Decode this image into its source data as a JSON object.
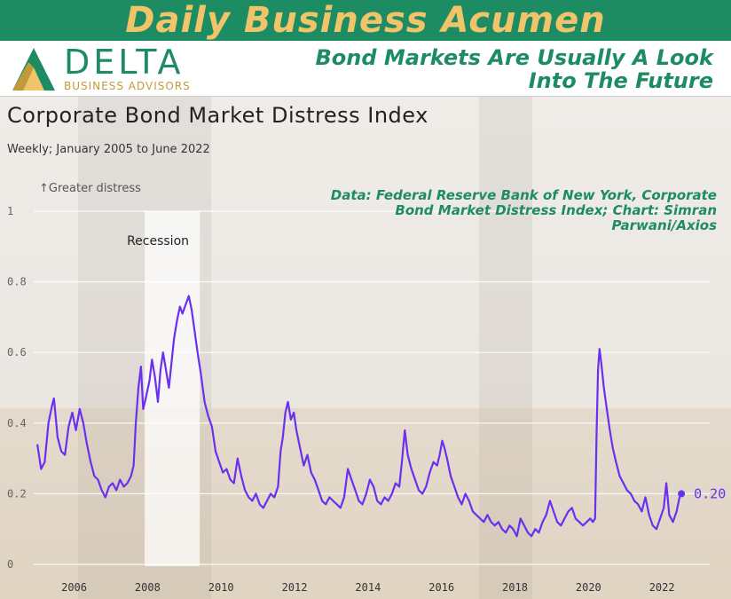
{
  "banner": {
    "title": "Daily Business Acumen"
  },
  "brand": {
    "logo_word": "DELTA",
    "logo_sub": "BUSINESS ADVISORS"
  },
  "tagline": "Bond Markets Are Usually A Look Into The Future",
  "source": "Data: Federal Reserve Bank of New York, Corporate Bond Market Distress Index; Chart: Simran Parwani/Axios",
  "colors": {
    "banner": "#1e8c63",
    "title_gold": "#f2c46a",
    "line": "#6b2ff0",
    "brand_green": "#1e8c63"
  },
  "chart_data": {
    "type": "line",
    "title": "Corporate Bond Market Distress Index",
    "subtitle": "Weekly; January 2005 to June 2022",
    "ylabel": "↑Greater distress",
    "ylim": [
      0,
      1
    ],
    "xlim": [
      2004.9,
      2023.3
    ],
    "y_ticks": [
      0,
      0.2,
      0.4,
      0.6,
      0.8,
      1
    ],
    "y_tick_labels": [
      "0",
      "0.2",
      "0.4",
      "0.6",
      "0.8",
      "1"
    ],
    "x_ticks": [
      2006,
      2008,
      2010,
      2012,
      2014,
      2016,
      2018,
      2020,
      2022
    ],
    "x_tick_labels": [
      "2006",
      "2008",
      "2010",
      "2012",
      "2014",
      "2016",
      "2018",
      "2020",
      "2022"
    ],
    "grid": true,
    "recession": {
      "label": "Recession",
      "start": 2007.92,
      "end": 2009.42
    },
    "end_label": "0.20",
    "series": [
      {
        "values": [
          [
            2005.0,
            0.34
          ],
          [
            2005.1,
            0.27
          ],
          [
            2005.2,
            0.29
          ],
          [
            2005.3,
            0.4
          ],
          [
            2005.4,
            0.45
          ],
          [
            2005.45,
            0.47
          ],
          [
            2005.55,
            0.36
          ],
          [
            2005.65,
            0.32
          ],
          [
            2005.75,
            0.31
          ],
          [
            2005.85,
            0.39
          ],
          [
            2005.95,
            0.43
          ],
          [
            2006.05,
            0.38
          ],
          [
            2006.15,
            0.44
          ],
          [
            2006.25,
            0.4
          ],
          [
            2006.35,
            0.34
          ],
          [
            2006.45,
            0.29
          ],
          [
            2006.55,
            0.25
          ],
          [
            2006.65,
            0.24
          ],
          [
            2006.75,
            0.21
          ],
          [
            2006.85,
            0.19
          ],
          [
            2006.95,
            0.22
          ],
          [
            2007.05,
            0.23
          ],
          [
            2007.15,
            0.21
          ],
          [
            2007.25,
            0.24
          ],
          [
            2007.35,
            0.22
          ],
          [
            2007.45,
            0.23
          ],
          [
            2007.55,
            0.25
          ],
          [
            2007.62,
            0.28
          ],
          [
            2007.68,
            0.4
          ],
          [
            2007.75,
            0.5
          ],
          [
            2007.82,
            0.56
          ],
          [
            2007.88,
            0.44
          ],
          [
            2007.95,
            0.47
          ],
          [
            2008.05,
            0.52
          ],
          [
            2008.12,
            0.58
          ],
          [
            2008.2,
            0.53
          ],
          [
            2008.28,
            0.46
          ],
          [
            2008.35,
            0.55
          ],
          [
            2008.42,
            0.6
          ],
          [
            2008.5,
            0.55
          ],
          [
            2008.58,
            0.5
          ],
          [
            2008.65,
            0.57
          ],
          [
            2008.72,
            0.64
          ],
          [
            2008.8,
            0.69
          ],
          [
            2008.88,
            0.73
          ],
          [
            2008.95,
            0.71
          ],
          [
            2009.05,
            0.74
          ],
          [
            2009.12,
            0.76
          ],
          [
            2009.2,
            0.72
          ],
          [
            2009.28,
            0.66
          ],
          [
            2009.36,
            0.6
          ],
          [
            2009.45,
            0.54
          ],
          [
            2009.55,
            0.46
          ],
          [
            2009.65,
            0.42
          ],
          [
            2009.75,
            0.39
          ],
          [
            2009.85,
            0.32
          ],
          [
            2009.95,
            0.29
          ],
          [
            2010.05,
            0.26
          ],
          [
            2010.15,
            0.27
          ],
          [
            2010.25,
            0.24
          ],
          [
            2010.35,
            0.23
          ],
          [
            2010.45,
            0.3
          ],
          [
            2010.55,
            0.25
          ],
          [
            2010.65,
            0.21
          ],
          [
            2010.75,
            0.19
          ],
          [
            2010.85,
            0.18
          ],
          [
            2010.95,
            0.2
          ],
          [
            2011.05,
            0.17
          ],
          [
            2011.15,
            0.16
          ],
          [
            2011.25,
            0.18
          ],
          [
            2011.35,
            0.2
          ],
          [
            2011.45,
            0.19
          ],
          [
            2011.55,
            0.22
          ],
          [
            2011.62,
            0.32
          ],
          [
            2011.68,
            0.36
          ],
          [
            2011.75,
            0.43
          ],
          [
            2011.82,
            0.46
          ],
          [
            2011.9,
            0.41
          ],
          [
            2011.98,
            0.43
          ],
          [
            2012.05,
            0.38
          ],
          [
            2012.15,
            0.33
          ],
          [
            2012.25,
            0.28
          ],
          [
            2012.35,
            0.31
          ],
          [
            2012.45,
            0.26
          ],
          [
            2012.55,
            0.24
          ],
          [
            2012.65,
            0.21
          ],
          [
            2012.75,
            0.18
          ],
          [
            2012.85,
            0.17
          ],
          [
            2012.95,
            0.19
          ],
          [
            2013.05,
            0.18
          ],
          [
            2013.15,
            0.17
          ],
          [
            2013.25,
            0.16
          ],
          [
            2013.35,
            0.19
          ],
          [
            2013.45,
            0.27
          ],
          [
            2013.55,
            0.24
          ],
          [
            2013.65,
            0.21
          ],
          [
            2013.75,
            0.18
          ],
          [
            2013.85,
            0.17
          ],
          [
            2013.95,
            0.2
          ],
          [
            2014.05,
            0.24
          ],
          [
            2014.15,
            0.22
          ],
          [
            2014.25,
            0.18
          ],
          [
            2014.35,
            0.17
          ],
          [
            2014.45,
            0.19
          ],
          [
            2014.55,
            0.18
          ],
          [
            2014.65,
            0.2
          ],
          [
            2014.75,
            0.23
          ],
          [
            2014.85,
            0.22
          ],
          [
            2014.92,
            0.29
          ],
          [
            2015.0,
            0.38
          ],
          [
            2015.08,
            0.31
          ],
          [
            2015.18,
            0.27
          ],
          [
            2015.28,
            0.24
          ],
          [
            2015.38,
            0.21
          ],
          [
            2015.48,
            0.2
          ],
          [
            2015.58,
            0.22
          ],
          [
            2015.68,
            0.26
          ],
          [
            2015.78,
            0.29
          ],
          [
            2015.88,
            0.28
          ],
          [
            2015.95,
            0.31
          ],
          [
            2016.02,
            0.35
          ],
          [
            2016.08,
            0.33
          ],
          [
            2016.15,
            0.3
          ],
          [
            2016.25,
            0.25
          ],
          [
            2016.35,
            0.22
          ],
          [
            2016.45,
            0.19
          ],
          [
            2016.55,
            0.17
          ],
          [
            2016.65,
            0.2
          ],
          [
            2016.75,
            0.18
          ],
          [
            2016.85,
            0.15
          ],
          [
            2016.95,
            0.14
          ],
          [
            2017.05,
            0.13
          ],
          [
            2017.15,
            0.12
          ],
          [
            2017.25,
            0.14
          ],
          [
            2017.35,
            0.12
          ],
          [
            2017.45,
            0.11
          ],
          [
            2017.55,
            0.12
          ],
          [
            2017.65,
            0.1
          ],
          [
            2017.75,
            0.09
          ],
          [
            2017.85,
            0.11
          ],
          [
            2017.95,
            0.1
          ],
          [
            2018.05,
            0.08
          ],
          [
            2018.15,
            0.13
          ],
          [
            2018.25,
            0.11
          ],
          [
            2018.35,
            0.09
          ],
          [
            2018.45,
            0.08
          ],
          [
            2018.55,
            0.1
          ],
          [
            2018.65,
            0.09
          ],
          [
            2018.75,
            0.12
          ],
          [
            2018.85,
            0.14
          ],
          [
            2018.95,
            0.18
          ],
          [
            2019.05,
            0.15
          ],
          [
            2019.15,
            0.12
          ],
          [
            2019.25,
            0.11
          ],
          [
            2019.35,
            0.13
          ],
          [
            2019.45,
            0.15
          ],
          [
            2019.55,
            0.16
          ],
          [
            2019.65,
            0.13
          ],
          [
            2019.75,
            0.12
          ],
          [
            2019.85,
            0.11
          ],
          [
            2019.95,
            0.12
          ],
          [
            2020.05,
            0.13
          ],
          [
            2020.12,
            0.12
          ],
          [
            2020.18,
            0.13
          ],
          [
            2020.22,
            0.36
          ],
          [
            2020.26,
            0.55
          ],
          [
            2020.3,
            0.61
          ],
          [
            2020.35,
            0.57
          ],
          [
            2020.42,
            0.5
          ],
          [
            2020.5,
            0.44
          ],
          [
            2020.58,
            0.38
          ],
          [
            2020.66,
            0.33
          ],
          [
            2020.75,
            0.29
          ],
          [
            2020.85,
            0.25
          ],
          [
            2020.95,
            0.23
          ],
          [
            2021.05,
            0.21
          ],
          [
            2021.15,
            0.2
          ],
          [
            2021.25,
            0.18
          ],
          [
            2021.35,
            0.17
          ],
          [
            2021.45,
            0.15
          ],
          [
            2021.55,
            0.19
          ],
          [
            2021.65,
            0.14
          ],
          [
            2021.75,
            0.11
          ],
          [
            2021.85,
            0.1
          ],
          [
            2021.95,
            0.13
          ],
          [
            2022.05,
            0.16
          ],
          [
            2022.12,
            0.23
          ],
          [
            2022.2,
            0.14
          ],
          [
            2022.3,
            0.12
          ],
          [
            2022.4,
            0.15
          ],
          [
            2022.48,
            0.19
          ],
          [
            2022.53,
            0.2
          ]
        ]
      }
    ]
  }
}
